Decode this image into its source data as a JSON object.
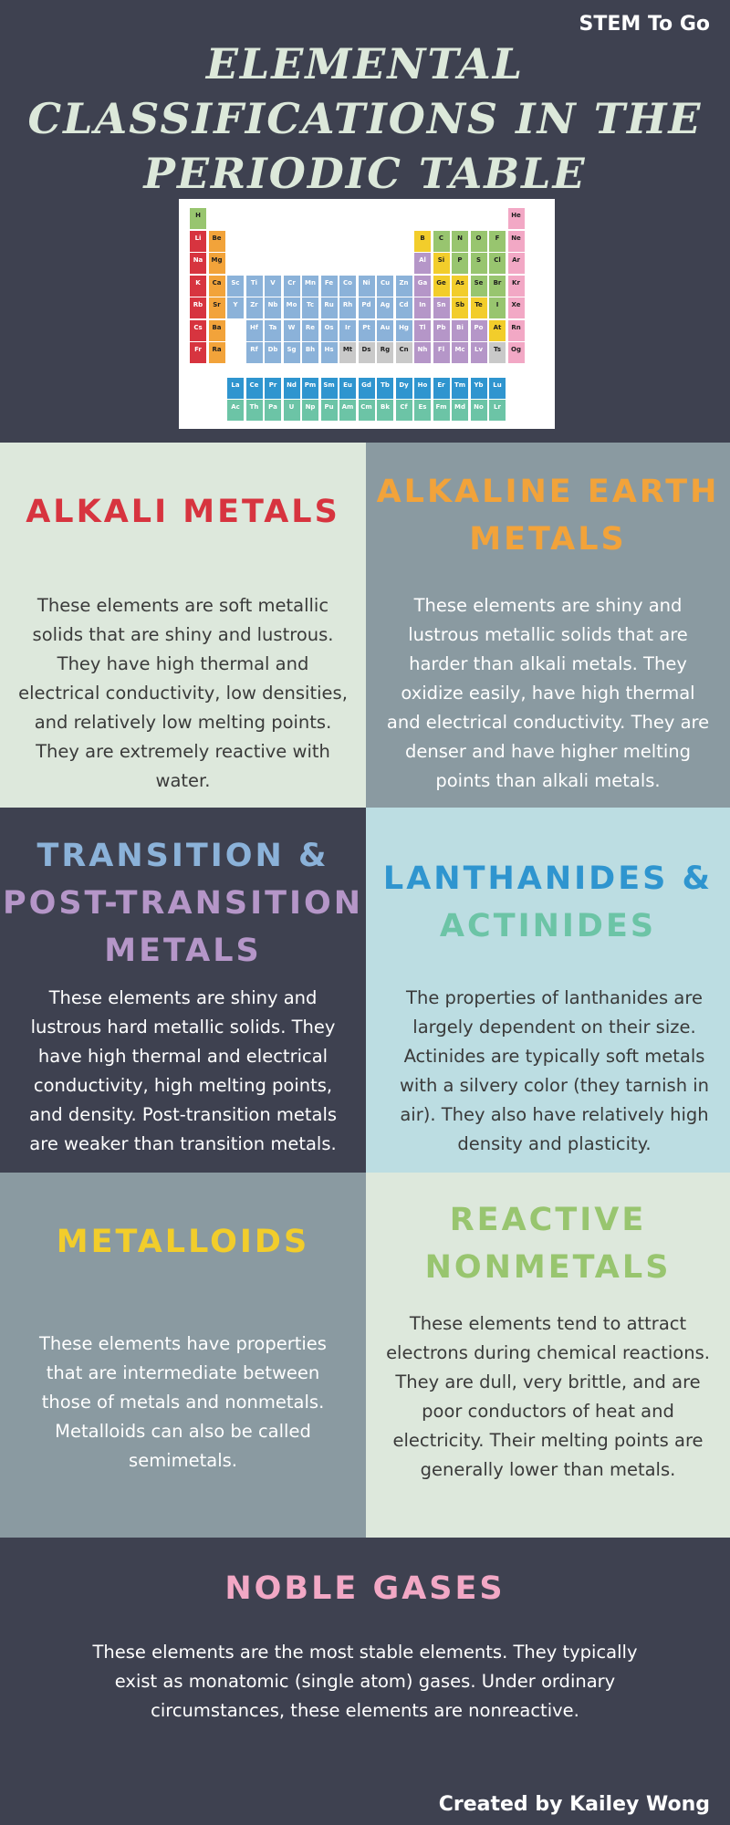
{
  "header": {
    "brand": "STEM To Go",
    "title_lines": [
      "ELEMENTAL",
      "CLASSIFICATIONS IN THE",
      "PERIODIC TABLE"
    ]
  },
  "colors": {
    "alkali": "#d7343f",
    "alkaline": "#f2a33a",
    "transition": "#8bb2d9",
    "post_transition": "#b596c8",
    "lanthanide": "#2f95cf",
    "actinide": "#6cc4a6",
    "metalloid": "#f2cd2b",
    "nonmetal": "#98c56f",
    "noble": "#f2a8c5",
    "unknown": "#c9c9c9"
  },
  "periodic_table": {
    "rows": [
      [
        "H",
        "",
        "",
        "",
        "",
        "",
        "",
        "",
        "",
        "",
        "",
        "",
        "",
        "",
        "",
        "",
        "",
        "He"
      ],
      [
        "Li",
        "Be",
        "",
        "",
        "",
        "",
        "",
        "",
        "",
        "",
        "",
        "",
        "B",
        "C",
        "N",
        "O",
        "F",
        "Ne"
      ],
      [
        "Na",
        "Mg",
        "",
        "",
        "",
        "",
        "",
        "",
        "",
        "",
        "",
        "",
        "Al",
        "Si",
        "P",
        "S",
        "Cl",
        "Ar"
      ],
      [
        "K",
        "Ca",
        "Sc",
        "Ti",
        "V",
        "Cr",
        "Mn",
        "Fe",
        "Co",
        "Ni",
        "Cu",
        "Zn",
        "Ga",
        "Ge",
        "As",
        "Se",
        "Br",
        "Kr"
      ],
      [
        "Rb",
        "Sr",
        "Y",
        "Zr",
        "Nb",
        "Mo",
        "Tc",
        "Ru",
        "Rh",
        "Pd",
        "Ag",
        "Cd",
        "In",
        "Sn",
        "Sb",
        "Te",
        "I",
        "Xe"
      ],
      [
        "Cs",
        "Ba",
        "",
        "Hf",
        "Ta",
        "W",
        "Re",
        "Os",
        "Ir",
        "Pt",
        "Au",
        "Hg",
        "Tl",
        "Pb",
        "Bi",
        "Po",
        "At",
        "Rn"
      ],
      [
        "Fr",
        "Ra",
        "",
        "Rf",
        "Db",
        "Sg",
        "Bh",
        "Hs",
        "Mt",
        "Ds",
        "Rg",
        "Cn",
        "Nh",
        "Fl",
        "Mc",
        "Lv",
        "Ts",
        "Og"
      ]
    ],
    "lanthanides": [
      "La",
      "Ce",
      "Pr",
      "Nd",
      "Pm",
      "Sm",
      "Eu",
      "Gd",
      "Tb",
      "Dy",
      "Ho",
      "Er",
      "Tm",
      "Yb",
      "Lu"
    ],
    "actinides": [
      "Ac",
      "Th",
      "Pa",
      "U",
      "Np",
      "Pu",
      "Am",
      "Cm",
      "Bk",
      "Cf",
      "Es",
      "Fm",
      "Md",
      "No",
      "Lr"
    ]
  },
  "sections": {
    "alkali": {
      "title_lines": [
        "ALKALI METALS"
      ],
      "text": "These elements are soft metallic solids that are shiny and lustrous. They have high thermal and electrical conductivity, low densities, and relatively low melting points. They are extremely reactive with water."
    },
    "alkaline": {
      "title_lines": [
        "ALKALINE EARTH",
        "METALS"
      ],
      "text": "These elements are shiny and lustrous metallic solids that are harder than alkali metals. They oxidize easily, have high thermal and electrical conductivity. They are denser and have higher melting points than alkali metals."
    },
    "transition": {
      "title_lines": [
        "TRANSITION &",
        "POST-TRANSITION",
        "METALS"
      ],
      "text": "These elements are shiny and lustrous hard metallic solids. They have high thermal and electrical conductivity, high melting points, and density. Post-transition metals are weaker than transition metals."
    },
    "lanthanides": {
      "title_lines": [
        "LANTHANIDES &",
        "ACTINIDES"
      ],
      "text": "The properties of lanthanides are largely dependent on their size. Actinides are typically soft metals with a silvery color (they tarnish in air). They also have relatively high density and plasticity."
    },
    "metalloids": {
      "title_lines": [
        "METALLOIDS"
      ],
      "text": "These elements have properties that are intermediate between those of metals and nonmetals. Metalloids can also be called semimetals."
    },
    "nonmetals": {
      "title_lines": [
        "REACTIVE",
        "NONMETALS"
      ],
      "text": "These elements tend to attract electrons during chemical reactions. They are dull, very brittle, and are poor conductors of heat and electricity. Their melting points are generally lower than metals."
    },
    "noble": {
      "title_lines": [
        "NOBLE GASES"
      ],
      "text": "These elements are the most stable elements. They typically exist as monatomic (single atom) gases. Under ordinary circumstances, these elements are nonreactive."
    }
  },
  "footer": {
    "credit": "Created by Kailey Wong"
  }
}
